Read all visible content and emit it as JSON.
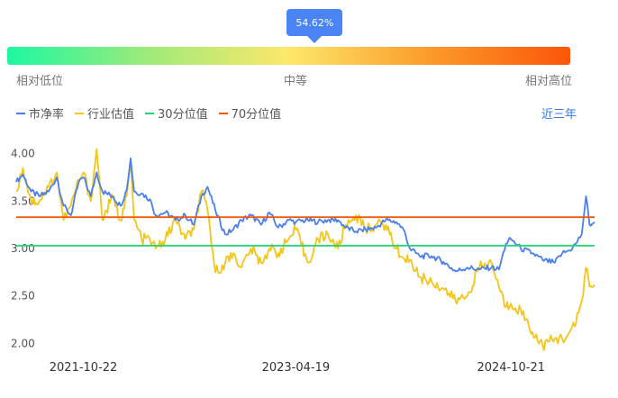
{
  "gauge": {
    "percent_label": "54.62%",
    "percent": 0.5462,
    "low_label": "相对低位",
    "mid_label": "中等",
    "high_label": "相对高位"
  },
  "legend": {
    "pb": "市净率",
    "industry": "行业估值",
    "p30": "30分位值",
    "p70": "70分位值"
  },
  "range_label": "近三年",
  "colors": {
    "pb": "#4a7ff0",
    "industry": "#f5c518",
    "p30": "#26d47c",
    "p70": "#f05a0c"
  },
  "chart_data": {
    "type": "line",
    "ylim": [
      1.9,
      4.1
    ],
    "yticks": [
      2.0,
      2.5,
      3.0,
      3.5,
      4.0
    ],
    "ytick_labels": [
      "2.00",
      "2.50",
      "3.00",
      "3.50",
      "4.00"
    ],
    "x_start": "2021-05-03",
    "x_end": "2025-05-23",
    "xtick_labels": [
      "2021-10-22",
      "2023-04-19",
      "2024-10-21"
    ],
    "p30": 3.03,
    "p70": 3.33,
    "series": [
      {
        "name": "市净率",
        "points": [
          [
            "2021-05-03",
            3.7
          ],
          [
            "2021-05-20",
            3.78
          ],
          [
            "2021-06-10",
            3.6
          ],
          [
            "2021-07-01",
            3.55
          ],
          [
            "2021-07-25",
            3.6
          ],
          [
            "2021-08-15",
            3.75
          ],
          [
            "2021-09-01",
            3.45
          ],
          [
            "2021-09-20",
            3.35
          ],
          [
            "2021-10-10",
            3.7
          ],
          [
            "2021-10-22",
            3.75
          ],
          [
            "2021-11-10",
            3.55
          ],
          [
            "2021-11-25",
            3.8
          ],
          [
            "2021-12-10",
            3.6
          ],
          [
            "2022-01-05",
            3.55
          ],
          [
            "2022-01-25",
            3.45
          ],
          [
            "2022-02-10",
            3.62
          ],
          [
            "2022-02-20",
            3.95
          ],
          [
            "2022-03-01",
            3.6
          ],
          [
            "2022-03-20",
            3.58
          ],
          [
            "2022-04-10",
            3.52
          ],
          [
            "2022-04-25",
            3.35
          ],
          [
            "2022-05-20",
            3.38
          ],
          [
            "2022-06-15",
            3.3
          ],
          [
            "2022-07-10",
            3.35
          ],
          [
            "2022-08-01",
            3.25
          ],
          [
            "2022-08-20",
            3.55
          ],
          [
            "2022-09-05",
            3.65
          ],
          [
            "2022-09-25",
            3.4
          ],
          [
            "2022-10-20",
            3.15
          ],
          [
            "2022-11-10",
            3.2
          ],
          [
            "2022-12-01",
            3.3
          ],
          [
            "2022-12-25",
            3.35
          ],
          [
            "2023-01-20",
            3.25
          ],
          [
            "2023-02-10",
            3.38
          ],
          [
            "2023-03-05",
            3.22
          ],
          [
            "2023-04-01",
            3.3
          ],
          [
            "2023-04-19",
            3.28
          ],
          [
            "2023-05-20",
            3.3
          ],
          [
            "2023-06-15",
            3.28
          ],
          [
            "2023-07-10",
            3.3
          ],
          [
            "2023-08-05",
            3.3
          ],
          [
            "2023-08-25",
            3.22
          ],
          [
            "2023-09-20",
            3.18
          ],
          [
            "2023-10-15",
            3.2
          ],
          [
            "2023-11-10",
            3.22
          ],
          [
            "2023-12-05",
            3.3
          ],
          [
            "2024-01-01",
            3.28
          ],
          [
            "2024-01-20",
            3.2
          ],
          [
            "2024-02-05",
            3.0
          ],
          [
            "2024-03-01",
            2.92
          ],
          [
            "2024-04-01",
            2.92
          ],
          [
            "2024-05-01",
            2.86
          ],
          [
            "2024-06-01",
            2.76
          ],
          [
            "2024-07-01",
            2.8
          ],
          [
            "2024-08-01",
            2.78
          ],
          [
            "2024-09-01",
            2.8
          ],
          [
            "2024-09-20",
            2.78
          ],
          [
            "2024-10-08",
            3.05
          ],
          [
            "2024-10-21",
            3.1
          ],
          [
            "2024-11-15",
            3.0
          ],
          [
            "2024-12-15",
            2.95
          ],
          [
            "2025-01-10",
            2.88
          ],
          [
            "2025-02-10",
            2.85
          ],
          [
            "2025-03-01",
            2.95
          ],
          [
            "2025-03-20",
            2.98
          ],
          [
            "2025-04-05",
            3.05
          ],
          [
            "2025-04-20",
            3.15
          ],
          [
            "2025-05-01",
            3.55
          ],
          [
            "2025-05-10",
            3.25
          ],
          [
            "2025-05-23",
            3.28
          ]
        ]
      },
      {
        "name": "行业估值",
        "points": [
          [
            "2021-05-03",
            3.6
          ],
          [
            "2021-05-20",
            3.85
          ],
          [
            "2021-06-10",
            3.5
          ],
          [
            "2021-07-01",
            3.5
          ],
          [
            "2021-07-25",
            3.65
          ],
          [
            "2021-08-15",
            3.8
          ],
          [
            "2021-09-01",
            3.3
          ],
          [
            "2021-09-20",
            3.45
          ],
          [
            "2021-10-10",
            3.72
          ],
          [
            "2021-10-22",
            3.8
          ],
          [
            "2021-11-10",
            3.5
          ],
          [
            "2021-11-25",
            4.05
          ],
          [
            "2021-12-10",
            3.3
          ],
          [
            "2022-01-05",
            3.55
          ],
          [
            "2022-01-25",
            3.3
          ],
          [
            "2022-02-10",
            3.55
          ],
          [
            "2022-02-20",
            3.9
          ],
          [
            "2022-03-01",
            3.3
          ],
          [
            "2022-03-20",
            3.1
          ],
          [
            "2022-04-10",
            3.1
          ],
          [
            "2022-04-25",
            3.0
          ],
          [
            "2022-05-20",
            3.1
          ],
          [
            "2022-06-15",
            3.3
          ],
          [
            "2022-07-10",
            3.1
          ],
          [
            "2022-08-01",
            3.2
          ],
          [
            "2022-08-20",
            3.6
          ],
          [
            "2022-09-05",
            3.4
          ],
          [
            "2022-09-25",
            2.75
          ],
          [
            "2022-10-20",
            2.85
          ],
          [
            "2022-11-10",
            2.95
          ],
          [
            "2022-12-01",
            2.8
          ],
          [
            "2022-12-25",
            3.0
          ],
          [
            "2023-01-20",
            2.85
          ],
          [
            "2023-02-10",
            3.0
          ],
          [
            "2023-03-05",
            2.95
          ],
          [
            "2023-04-01",
            3.1
          ],
          [
            "2023-04-19",
            3.2
          ],
          [
            "2023-05-20",
            2.85
          ],
          [
            "2023-06-15",
            3.1
          ],
          [
            "2023-07-10",
            3.15
          ],
          [
            "2023-08-05",
            3.0
          ],
          [
            "2023-08-25",
            3.25
          ],
          [
            "2023-09-20",
            3.35
          ],
          [
            "2023-10-15",
            3.2
          ],
          [
            "2023-11-10",
            3.25
          ],
          [
            "2023-12-05",
            3.25
          ],
          [
            "2024-01-01",
            3.0
          ],
          [
            "2024-01-20",
            2.9
          ],
          [
            "2024-02-05",
            2.88
          ],
          [
            "2024-03-01",
            2.7
          ],
          [
            "2024-04-01",
            2.65
          ],
          [
            "2024-05-01",
            2.58
          ],
          [
            "2024-06-01",
            2.45
          ],
          [
            "2024-07-01",
            2.5
          ],
          [
            "2024-08-01",
            2.8
          ],
          [
            "2024-09-01",
            2.85
          ],
          [
            "2024-09-20",
            2.6
          ],
          [
            "2024-10-08",
            2.38
          ],
          [
            "2024-10-21",
            2.42
          ],
          [
            "2024-11-15",
            2.35
          ],
          [
            "2024-12-15",
            2.12
          ],
          [
            "2025-01-10",
            1.98
          ],
          [
            "2025-02-10",
            2.05
          ],
          [
            "2025-03-01",
            2.05
          ],
          [
            "2025-03-20",
            2.12
          ],
          [
            "2025-04-05",
            2.2
          ],
          [
            "2025-04-20",
            2.45
          ],
          [
            "2025-05-01",
            2.8
          ],
          [
            "2025-05-10",
            2.6
          ],
          [
            "2025-05-23",
            2.62
          ]
        ]
      }
    ]
  }
}
